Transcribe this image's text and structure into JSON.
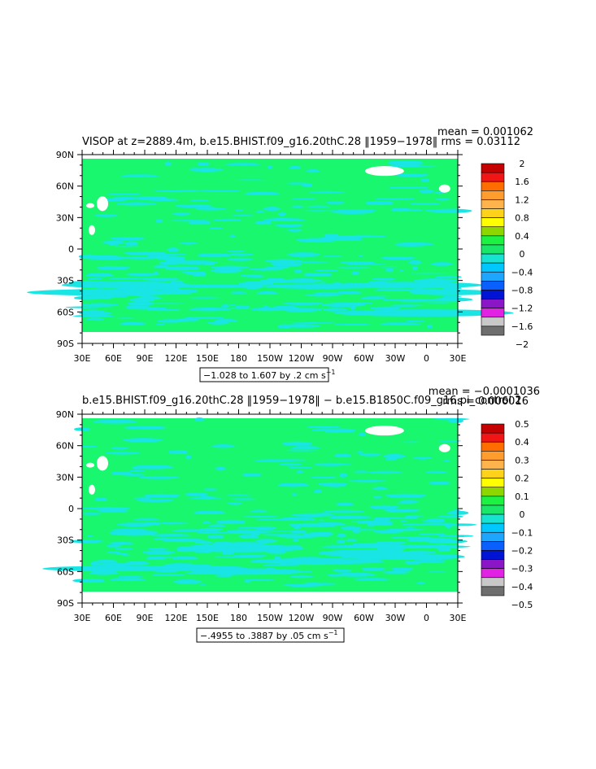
{
  "panels": [
    {
      "title": "VISOP at z=2889.4m, b.e15.BHIST.f09_g16.20thC.28 ‖1959−1978‖",
      "mean_text": "mean = 0.001062",
      "rms_text": "rms = 0.03112",
      "range_text": "−1.028 to 1.607 by .2 cm s",
      "range_exp": "−1",
      "colorbar_labels": [
        "2",
        "1.6",
        "1.2",
        "0.8",
        "0.4",
        "0",
        "−0.4",
        "−0.8",
        "−1.2",
        "−1.6",
        "−2"
      ]
    },
    {
      "title": "b.e15.BHIST.f09_g16.20thC.28 ‖1959−1978‖ − b.e15.B1850C.f09_g16.pi_control.2",
      "mean_text": "mean = −0.0001036",
      "rms_text": "rms = 0.006016",
      "range_text": "−.4955 to .3887 by .05 cm s",
      "range_exp": "−1",
      "colorbar_labels": [
        "0.5",
        "0.4",
        "0.3",
        "0.2",
        "0.1",
        "0",
        "−0.1",
        "−0.2",
        "−0.3",
        "−0.4",
        "−0.5"
      ]
    }
  ],
  "lat_labels": [
    "90N",
    "60N",
    "30N",
    "0",
    "30S",
    "60S",
    "90S"
  ],
  "lon_labels": [
    "30E",
    "60E",
    "90E",
    "120E",
    "150E",
    "180",
    "150W",
    "120W",
    "90W",
    "60W",
    "30W",
    "0",
    "30E"
  ],
  "colors": {
    "field_green": "#19f76e",
    "anomaly_cyan": "#19e5e5",
    "land_white": "#ffffff",
    "colorbar": [
      "#c40000",
      "#f21515",
      "#ff6d00",
      "#ff9c2e",
      "#ffb34c",
      "#ffd21a",
      "#ffff00",
      "#8ed600",
      "#1df243",
      "#1ae669",
      "#15e4d1",
      "#00c8ff",
      "#1ea6ff",
      "#0a60ff",
      "#0014d6",
      "#8b16c7",
      "#e222e2",
      "#c8c8c8",
      "#6e6e6e"
    ]
  }
}
